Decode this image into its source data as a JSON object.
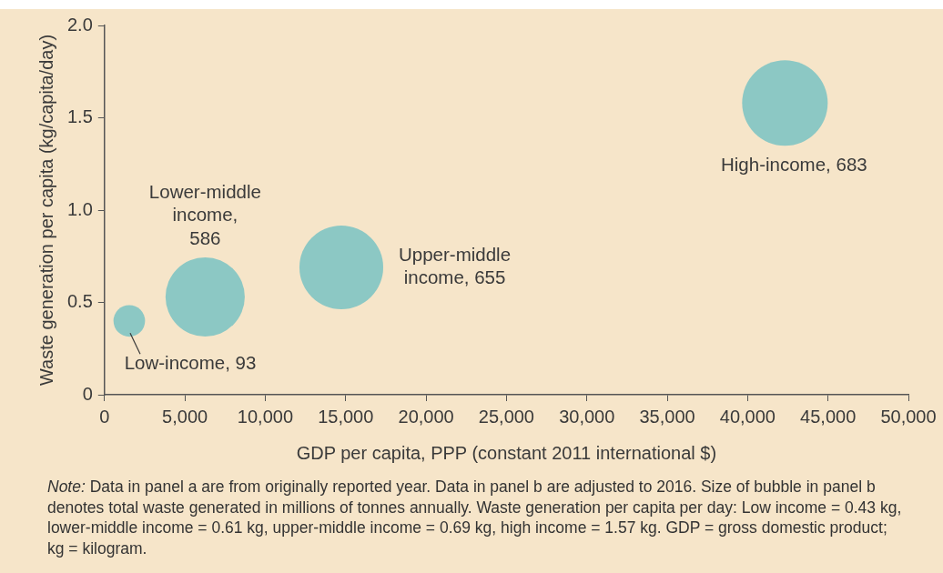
{
  "chart_data": {
    "type": "bubble",
    "xlabel": "GDP per capita, PPP (constant 2011 international $)",
    "ylabel": "Waste generation per capita (kg/capita/day)",
    "x": [
      1540,
      6260,
      14730,
      42320
    ],
    "series": [
      {
        "color": "#8cc8c4",
        "values": [
          0.4,
          0.53,
          0.69,
          1.58
        ],
        "sizes": [
          93,
          586,
          655,
          683
        ],
        "value_labels": [
          "Low-income, 93",
          "Lower-middle income, 586",
          "Upper-middle income, 655",
          "High-income, 683"
        ]
      }
    ],
    "xlim": [
      0,
      50000
    ],
    "xticks": [
      0,
      {
        "value": 5000,
        "label": "5,000"
      },
      {
        "value": 10000,
        "label": "10,000"
      },
      {
        "value": 15000,
        "label": "15,000"
      },
      {
        "value": 20000,
        "label": "20,000"
      },
      {
        "value": 25000,
        "label": "25,000"
      },
      {
        "value": 30000,
        "label": "30,000"
      },
      {
        "value": 35000,
        "label": "35,000"
      },
      {
        "value": 40000,
        "label": "40,000"
      },
      {
        "value": 45000,
        "label": "45,000"
      },
      {
        "value": 50000,
        "label": "50,000"
      }
    ],
    "ylim": [
      0,
      2
    ],
    "yticks": [
      0,
      0.5,
      {
        "value": 1,
        "label": "1.0"
      },
      1.5,
      {
        "value": 2,
        "label": "2.0"
      }
    ],
    "grid": false,
    "legend": false,
    "annotations": [
      "Note: Data in panel a are from originally reported year. Data in panel b are adjusted to 2016. Size of bubble in panel b denotes total waste generated in millions of tonnes annually. Waste generation per capita per day: Low income = 0.43 kg, lower-middle income = 0.61 kg, upper-middle income = 0.69 kg, high income = 1.57 kg. GDP = gross domestic product; kg = kilogram."
    ]
  }
}
